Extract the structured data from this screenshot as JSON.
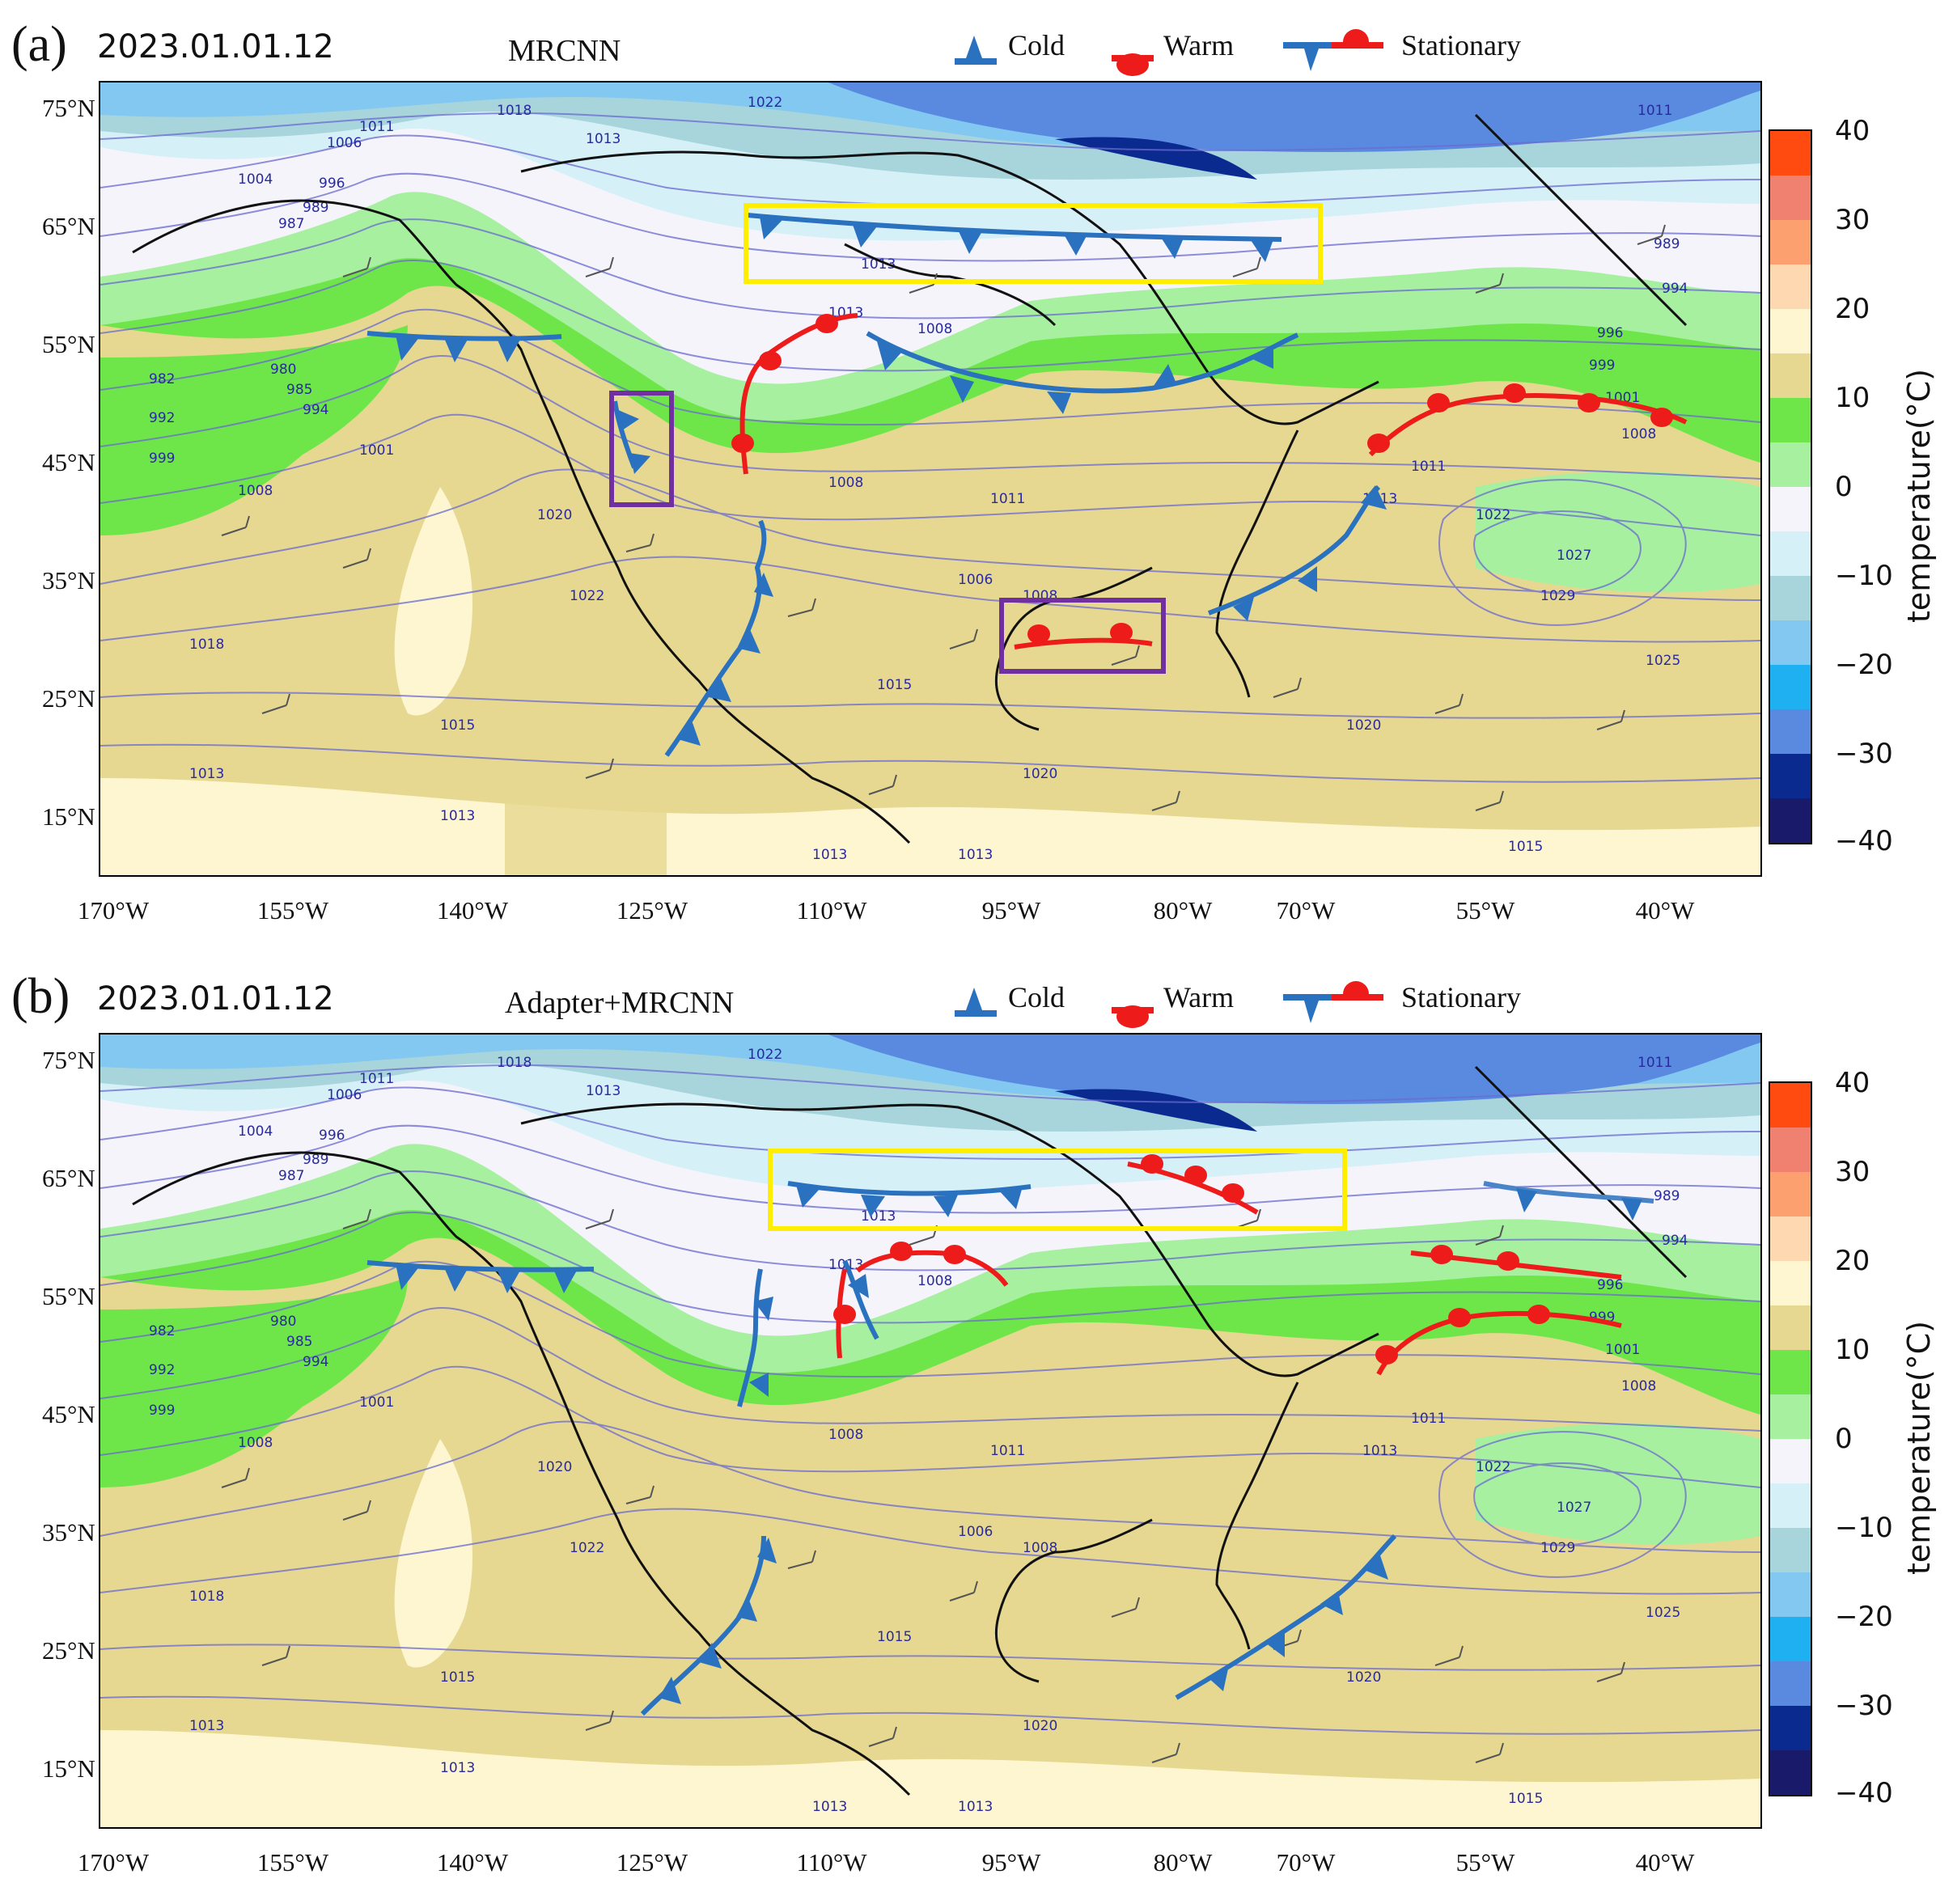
{
  "panels": [
    {
      "letter": "(a)",
      "datetime": "2023.01.01.12",
      "model": "MRCNN"
    },
    {
      "letter": "(b)",
      "datetime": "2023.01.01.12",
      "model": "Adapter+MRCNN"
    }
  ],
  "legend": {
    "cold": "Cold",
    "warm": "Warm",
    "stationary": "Stationary"
  },
  "latitude_labels": [
    "75°N",
    "65°N",
    "55°N",
    "45°N",
    "35°N",
    "25°N",
    "15°N"
  ],
  "longitude_labels": [
    "170°W",
    "155°W",
    "140°W",
    "125°W",
    "110°W",
    "95°W",
    "80°W",
    "70°W",
    "55°W",
    "40°W"
  ],
  "colorbar": {
    "title": "temperature(°C)",
    "ticks": [
      "40",
      "30",
      "20",
      "10",
      "0",
      "−10",
      "−20",
      "−30",
      "−40"
    ],
    "colors": [
      "#ff4a10",
      "#f08070",
      "#fca070",
      "#fdd8b0",
      "#fdf6d0",
      "#e6d890",
      "#6ee64a",
      "#a6f0a0",
      "#f4f4fa",
      "#d6f0f8",
      "#a8d4dc",
      "#82c8f0",
      "#1eb0f0",
      "#5a8ae0",
      "#0a2a90",
      "#1a1a6a"
    ]
  },
  "front_colors": {
    "cold": "#2a72c0",
    "warm": "#ee1b1b",
    "highlight_yellow": "#ffee00",
    "highlight_purple": "#7030a0"
  },
  "isobar_labels": [
    "1013",
    "1015",
    "1018",
    "1020",
    "1022",
    "1025",
    "1027",
    "1029",
    "1011",
    "1008",
    "1006",
    "1004",
    "1001",
    "999",
    "996",
    "994",
    "992",
    "989",
    "987",
    "985",
    "982",
    "980"
  ]
}
